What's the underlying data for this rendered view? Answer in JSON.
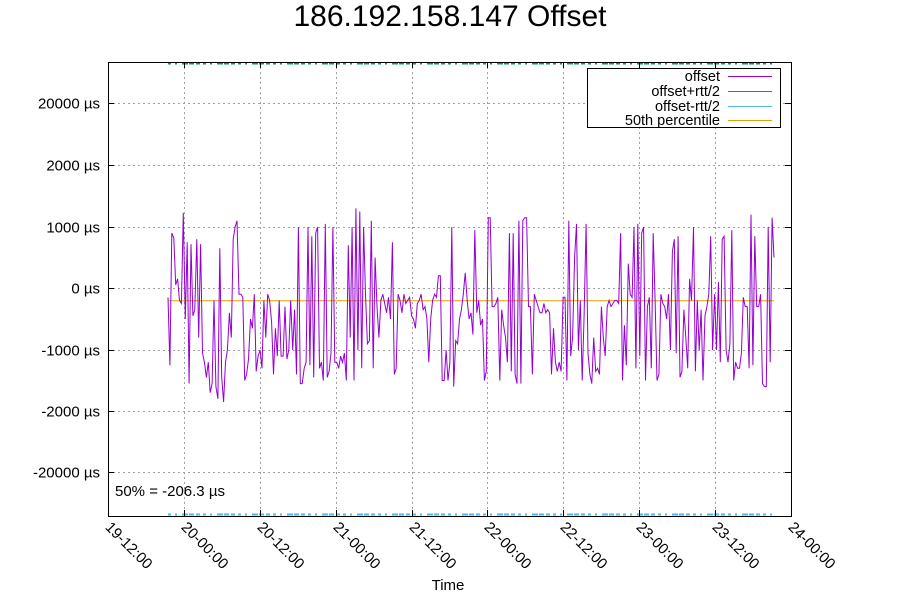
{
  "title": "186.192.158.147 Offset",
  "x_axis_label": "Time",
  "median_annotation": "50% = -206.3 µs",
  "legend": [
    {
      "label": "offset",
      "color": "#9400d3"
    },
    {
      "label": "offset+rtt/2",
      "color": "#009e73"
    },
    {
      "label": "offset-rtt/2",
      "color": "#56b4e9"
    },
    {
      "label": "50th percentile",
      "color": "#e69f00"
    }
  ],
  "y_ticks": [
    "20000 µs",
    "2000 µs",
    "1000 µs",
    "0 µs",
    "-1000 µs",
    "-2000 µs",
    "-20000 µs"
  ],
  "x_ticks": [
    "19-12:00",
    "20-00:00",
    "20-12:00",
    "21-00:00",
    "21-12:00",
    "22-00:00",
    "22-12:00",
    "23-00:00",
    "23-12:00",
    "24-00:00"
  ],
  "chart_data": {
    "type": "line",
    "title": "186.192.158.147 Offset",
    "xlabel": "Time",
    "ylabel": "",
    "y_scale": "piecewise (symlog-like): ±20000, ±2000, ±1000, 0",
    "ylim": [
      -27000,
      27000
    ],
    "xlim": [
      "19-12:00",
      "24-00:00"
    ],
    "grid": true,
    "legend_position": "top-right",
    "series": [
      {
        "name": "offset",
        "color": "#9400d3",
        "x_start": "19-19:35",
        "x_end": "23-19:40",
        "values_us": [
          -150,
          -1250,
          900,
          820,
          50,
          150,
          -200,
          -250,
          1230,
          -500,
          750,
          -1550,
          720,
          -450,
          -350,
          800,
          -800,
          720,
          -1050,
          -1200,
          -1450,
          -1200,
          -1700,
          -1550,
          -200,
          -1600,
          -1800,
          650,
          -1450,
          -1850,
          -1200,
          -1000,
          -400,
          -800,
          800,
          1000,
          1100,
          -100,
          -100,
          -150,
          -1500,
          -1400,
          -1150,
          -500,
          -650,
          -100,
          -1350,
          -1100,
          -1000,
          -1300,
          -200,
          -800,
          -100,
          -200,
          -550,
          -1400,
          -650,
          -1100,
          -200,
          -1100,
          -1100,
          -300,
          -1150,
          -1000,
          -200,
          -1000,
          -350,
          -1400,
          1000,
          -1550,
          -1550,
          -1300,
          -1200,
          1000,
          -1250,
          850,
          -1450,
          900,
          1000,
          -1300,
          -1200,
          -1500,
          1050,
          -1450,
          -1350,
          -1050,
          1000,
          -1200,
          -1200,
          -1300,
          -1100,
          -1200,
          -1050,
          -1500,
          700,
          -800,
          1000,
          -1500,
          1300,
          -1000,
          1250,
          -1300,
          1000,
          -100,
          -900,
          -850,
          1100,
          -1300,
          500,
          -300,
          -800,
          -200,
          -100,
          -250,
          -400,
          -150,
          -500,
          750,
          -1400,
          -1300,
          -100,
          -200,
          -400,
          -100,
          -250,
          -200,
          -150,
          -450,
          -500,
          -650,
          -250,
          -200,
          -100,
          -350,
          -300,
          -500,
          -1200,
          -500,
          -200,
          -100,
          -150,
          200,
          200,
          -1500,
          -1500,
          -1000,
          -1500,
          -1200,
          1000,
          -1600,
          -850,
          -900,
          -500,
          -350,
          -100,
          250,
          -200,
          -500,
          -400,
          -750,
          950,
          -400,
          -200,
          -600,
          -500,
          -1500,
          -1350,
          1150,
          1150,
          -300,
          -300,
          -250,
          -150,
          -1500,
          -350,
          -600,
          -800,
          -1200,
          900,
          -1350,
          900,
          -1400,
          -1550,
          1100,
          -1550,
          1100,
          1150,
          1150,
          -300,
          -300,
          -1400,
          -100,
          -200,
          -300,
          -400,
          -400,
          -250,
          -400,
          -350,
          -400,
          -1400,
          -650,
          -1200,
          -1350,
          -1200,
          -1350,
          -150,
          -150,
          -1500,
          1100,
          -1100,
          -800,
          500,
          1050,
          -1000,
          -200,
          -1500,
          -450,
          1050,
          -1050,
          -1400,
          -1550,
          -800,
          -1350,
          -1300,
          -1400,
          -300,
          -800,
          -1100,
          -300,
          -200,
          -300,
          -250,
          -200,
          -200,
          -250,
          900,
          -1500,
          -600,
          -1250,
          400,
          -100,
          -150,
          1000,
          -1300,
          1050,
          -1100,
          900,
          1000,
          -1500,
          -300,
          -150,
          -1300,
          900,
          -200,
          -1500,
          -1400,
          -100,
          -250,
          -300,
          -500,
          -100,
          -1000,
          600,
          800,
          -1050,
          850,
          -1450,
          -1350,
          -350,
          -800,
          -1300,
          150,
          -200,
          1000,
          -1350,
          -200,
          -1000,
          -350,
          -1500,
          -450,
          -300,
          -100,
          850,
          -1000,
          -100,
          -1000,
          100,
          -1200,
          800,
          850,
          -1000,
          -1200,
          -900,
          950,
          -1500,
          -1200,
          -1300,
          -1300,
          -1050,
          -150,
          -300,
          -300,
          -1300,
          1200,
          -1250,
          850,
          -300,
          -300,
          -100,
          -1550,
          -1600,
          -1600,
          1000,
          -1200,
          1150,
          500
        ]
      },
      {
        "name": "offset+rtt/2",
        "color": "#009e73",
        "note": "clipped above top of plot (> +27000 µs)"
      },
      {
        "name": "offset-rtt/2",
        "color": "#56b4e9",
        "note": "clipped below bottom of plot (< -27000 µs)"
      },
      {
        "name": "50th percentile",
        "color": "#e69f00",
        "value_us": -206.3
      }
    ]
  }
}
